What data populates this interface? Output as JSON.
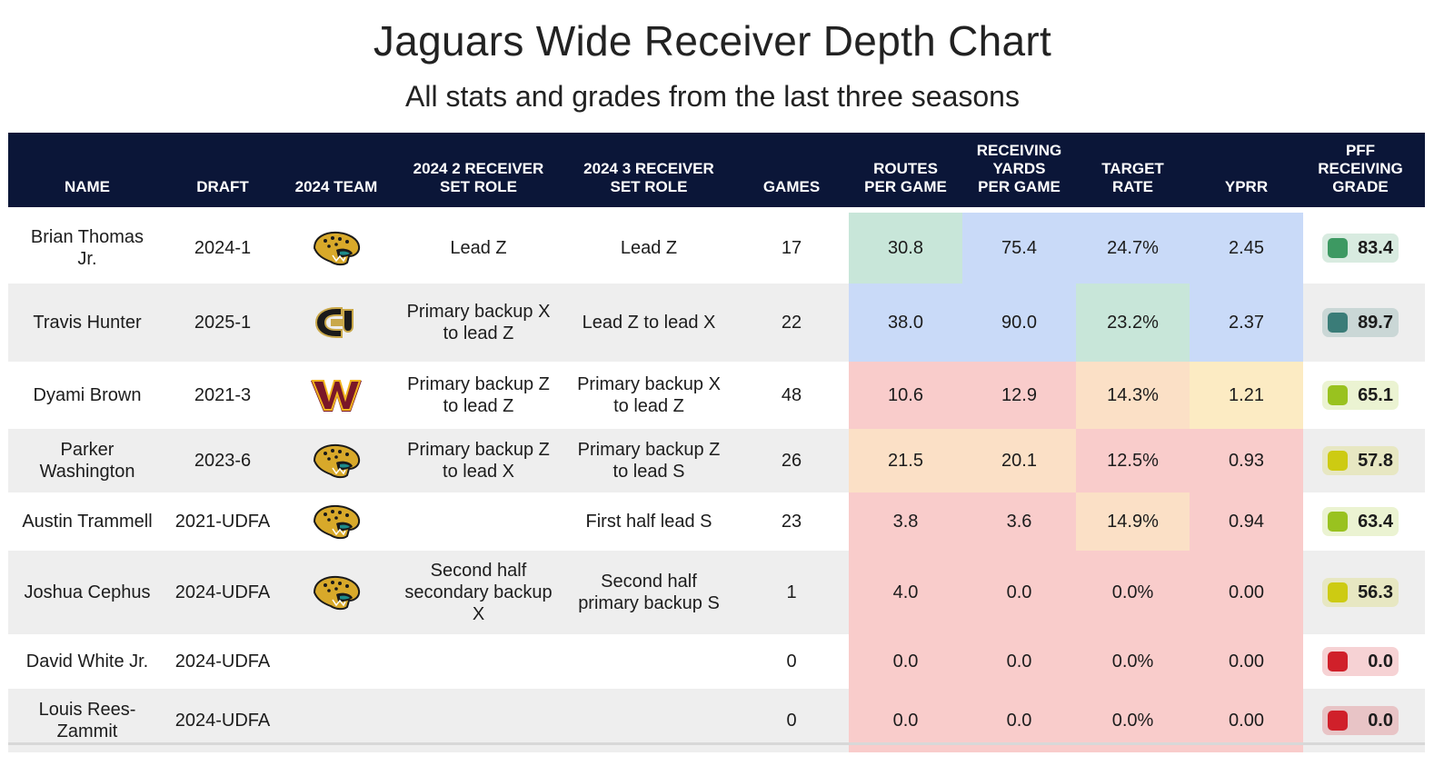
{
  "title": "Jaguars Wide Receiver Depth Chart",
  "subtitle": "All stats and grades from the last three seasons",
  "colors": {
    "header_bg": "#0b1638",
    "blue": "#c9daf8",
    "teal": "#c8e6d9",
    "red": "#f9cccb",
    "peach": "#fbe0c6",
    "yellow": "#fcebc3",
    "grade_green": "#3d9962",
    "grade_teal": "#3a7c78",
    "grade_lime": "#99c21f",
    "grade_yellow": "#cdcb12",
    "grade_red": "#d0202a"
  },
  "headers": {
    "name": "NAME",
    "draft": "DRAFT",
    "team": "2024 TEAM",
    "role2": "2024 2 RECEIVER\nSET ROLE",
    "role3": "2024 3 RECEIVER\nSET ROLE",
    "games": "GAMES",
    "routes": "ROUTES\nPER GAME",
    "yards": "RECEIVING\nYARDS\nPER GAME",
    "target": "TARGET\nRATE",
    "yprr": "YPRR",
    "grade": "PFF\nRECEIVING\nGRADE"
  },
  "rows": [
    {
      "name": "Brian Thomas\nJr.",
      "draft": "2024-1",
      "team": "jaguars-logo",
      "role2": "Lead Z",
      "role3": "Lead Z",
      "games": "17",
      "routes": "30.8",
      "yards": "75.4",
      "target": "24.7%",
      "yprr": "2.45",
      "grade": "83.4",
      "colors": {
        "routes": "teal",
        "yards": "blue",
        "target": "blue",
        "yprr": "blue",
        "grade": "grade_green"
      }
    },
    {
      "name": "Travis Hunter",
      "draft": "2025-1",
      "team": "colorado-logo",
      "role2": "Primary backup X\nto lead Z",
      "role3": "Lead Z to lead X",
      "games": "22",
      "routes": "38.0",
      "yards": "90.0",
      "target": "23.2%",
      "yprr": "2.37",
      "grade": "89.7",
      "colors": {
        "routes": "blue",
        "yards": "blue",
        "target": "teal",
        "yprr": "blue",
        "grade": "grade_teal"
      }
    },
    {
      "name": "Dyami Brown",
      "draft": "2021-3",
      "team": "commanders-logo",
      "role2": "Primary backup Z\nto lead Z",
      "role3": "Primary backup X\nto lead Z",
      "games": "48",
      "routes": "10.6",
      "yards": "12.9",
      "target": "14.3%",
      "yprr": "1.21",
      "grade": "65.1",
      "colors": {
        "routes": "red",
        "yards": "red",
        "target": "peach",
        "yprr": "yellow",
        "grade": "grade_lime"
      }
    },
    {
      "name": "Parker\nWashington",
      "draft": "2023-6",
      "team": "jaguars-logo",
      "role2": "Primary backup Z\nto lead X",
      "role3": "Primary backup Z\nto lead S",
      "games": "26",
      "routes": "21.5",
      "yards": "20.1",
      "target": "12.5%",
      "yprr": "0.93",
      "grade": "57.8",
      "colors": {
        "routes": "peach",
        "yards": "peach",
        "target": "red",
        "yprr": "red",
        "grade": "grade_yellow"
      }
    },
    {
      "name": "Austin Trammell",
      "draft": "2021-UDFA",
      "team": "jaguars-logo",
      "role2": "",
      "role3": "First half lead S",
      "games": "23",
      "routes": "3.8",
      "yards": "3.6",
      "target": "14.9%",
      "yprr": "0.94",
      "grade": "63.4",
      "colors": {
        "routes": "red",
        "yards": "red",
        "target": "peach",
        "yprr": "red",
        "grade": "grade_lime"
      }
    },
    {
      "name": "Joshua Cephus",
      "draft": "2024-UDFA",
      "team": "jaguars-logo",
      "role2": "Second half\nsecondary backup\nX",
      "role3": "Second half\nprimary backup S",
      "games": "1",
      "routes": "4.0",
      "yards": "0.0",
      "target": "0.0%",
      "yprr": "0.00",
      "grade": "56.3",
      "colors": {
        "routes": "red",
        "yards": "red",
        "target": "red",
        "yprr": "red",
        "grade": "grade_yellow"
      }
    },
    {
      "name": "David White Jr.",
      "draft": "2024-UDFA",
      "team": "",
      "role2": "",
      "role3": "",
      "games": "0",
      "routes": "0.0",
      "yards": "0.0",
      "target": "0.0%",
      "yprr": "0.00",
      "grade": "0.0",
      "colors": {
        "routes": "red",
        "yards": "red",
        "target": "red",
        "yprr": "red",
        "grade": "grade_red"
      }
    },
    {
      "name": "Louis Rees-\nZammit",
      "draft": "2024-UDFA",
      "team": "",
      "role2": "",
      "role3": "",
      "games": "0",
      "routes": "0.0",
      "yards": "0.0",
      "target": "0.0%",
      "yprr": "0.00",
      "grade": "0.0",
      "colors": {
        "routes": "red",
        "yards": "red",
        "target": "red",
        "yprr": "red",
        "grade": "grade_red"
      }
    }
  ]
}
